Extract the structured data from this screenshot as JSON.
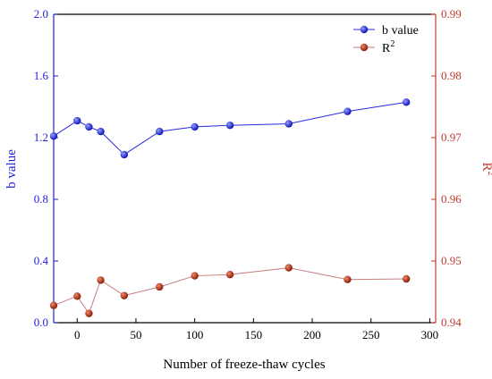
{
  "chart_data": {
    "type": "line",
    "xlabel": "Number of freeze-thaw cycles",
    "x_range": [
      -20,
      305
    ],
    "x_ticks": [
      0,
      50,
      100,
      150,
      200,
      250,
      300
    ],
    "left_axis": {
      "label": "b value",
      "range": [
        0.0,
        2.0
      ],
      "ticks": [
        "0.0",
        "0.4",
        "0.8",
        "1.2",
        "1.6",
        "2.0"
      ],
      "color": "#1f1fd6"
    },
    "right_axis": {
      "label": "R",
      "label_superscript": "2",
      "range": [
        0.94,
        0.99
      ],
      "ticks": [
        "0.94",
        "0.95",
        "0.96",
        "0.97",
        "0.98",
        "0.99"
      ],
      "color": "#c0392b"
    },
    "series": [
      {
        "name": "b value",
        "axis": "left",
        "color": "#2a2ae0",
        "marker": "blue-sphere",
        "x": [
          -20,
          0,
          10,
          20,
          40,
          70,
          100,
          130,
          180,
          230,
          280
        ],
        "values": [
          1.21,
          1.31,
          1.27,
          1.24,
          1.09,
          1.24,
          1.27,
          1.28,
          1.29,
          1.37,
          1.43
        ]
      },
      {
        "name": "R",
        "name_superscript": "2",
        "axis": "right",
        "color": "#c87d7d",
        "marker": "red-sphere",
        "x": [
          -20,
          0,
          10,
          20,
          40,
          70,
          100,
          130,
          180,
          230,
          280
        ],
        "values": [
          0.9428,
          0.9443,
          0.9415,
          0.9469,
          0.9444,
          0.9458,
          0.9476,
          0.9478,
          0.9489,
          0.947,
          0.9471
        ]
      }
    ],
    "legend_position": "top-right",
    "grid": false
  }
}
